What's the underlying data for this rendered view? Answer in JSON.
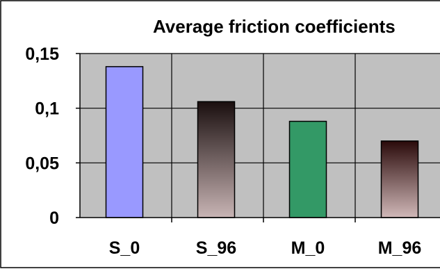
{
  "chart_data": {
    "type": "bar",
    "title": "Average friction coefficients",
    "xlabel": "",
    "ylabel": "",
    "categories": [
      "S_0",
      "S_96",
      "M_0",
      "M_96"
    ],
    "values": [
      0.138,
      0.106,
      0.088,
      0.07
    ],
    "ylim": [
      0,
      0.15
    ],
    "yticks": [
      0,
      0.05,
      0.1,
      0.15
    ],
    "ytick_labels": [
      "0",
      "0,05",
      "0,1",
      "0,15"
    ],
    "grid": true,
    "legend": "none",
    "plot_background": "#c0c0c0",
    "bar_fills": [
      {
        "type": "solid",
        "color": "#9999ff"
      },
      {
        "type": "gradient",
        "top": "#1a0f0f",
        "bottom": "#c8b4b4"
      },
      {
        "type": "solid",
        "color": "#339966"
      },
      {
        "type": "gradient",
        "top": "#2a0a0a",
        "bottom": "#d0b8b8"
      }
    ]
  }
}
